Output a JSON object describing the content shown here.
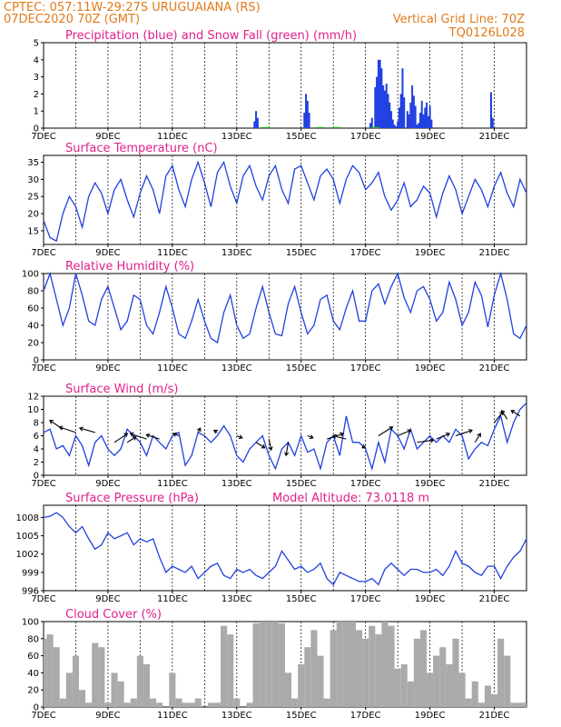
{
  "header": {
    "line1": "CPTEC:   057:11W-29:27S  URUGUAIANA (RS)",
    "line2": "07DEC2020 70Z (GMT)",
    "right1": "Vertical Grid Line: 70Z",
    "right2": "TQ0126L028"
  },
  "x_ticks": [
    "7DEC",
    "9DEC",
    "11DEC",
    "13DEC",
    "15DEC",
    "17DEC",
    "19DEC",
    "21DEC"
  ],
  "colors": {
    "series": "#2040e0",
    "snow": "#20b020",
    "cloud": "#aaaaaa",
    "header": "#e07a1a",
    "title": "#e0208a"
  },
  "chart_data": [
    {
      "id": "precip",
      "type": "bar",
      "title": "Precipitation (blue) and Snow Fall (green) (mm/h)",
      "ylim": [
        0,
        5
      ],
      "yticks": [
        0,
        1,
        2,
        3,
        4,
        5
      ],
      "x_unit": "days since 7DEC 00Z",
      "series": [
        {
          "name": "Precipitation",
          "x": [
            6.55,
            6.6,
            6.65,
            8.1,
            8.15,
            8.2,
            8.25,
            10.15,
            10.2,
            10.3,
            10.35,
            10.4,
            10.45,
            10.5,
            10.55,
            10.6,
            10.65,
            10.7,
            10.75,
            10.8,
            10.85,
            10.9,
            10.95,
            11.0,
            11.05,
            11.1,
            11.15,
            11.2,
            11.3,
            11.35,
            11.4,
            11.45,
            11.5,
            11.55,
            11.6,
            11.65,
            11.7,
            11.75,
            11.8,
            11.85,
            11.9,
            11.95,
            12.0,
            12.05,
            13.9,
            13.95
          ],
          "values": [
            0.4,
            1.0,
            0.6,
            0.9,
            2.0,
            1.6,
            0.9,
            0.3,
            0.6,
            2.4,
            3.0,
            4.0,
            4.0,
            3.5,
            2.5,
            2.2,
            2.6,
            2.0,
            1.5,
            1.0,
            0.5,
            0.2,
            0.1,
            0.4,
            1.2,
            2.0,
            3.5,
            1.8,
            1.0,
            0.8,
            1.5,
            2.5,
            1.9,
            1.3,
            0.2,
            0.3,
            0.9,
            1.6,
            0.8,
            1.2,
            1.5,
            0.7,
            1.3,
            0.5,
            2.1,
            0.6
          ]
        },
        {
          "name": "Snow Fall",
          "x": [
            6.8,
            6.9,
            8.5,
            8.6,
            9.0,
            9.1,
            10.2,
            10.3
          ],
          "values": [
            0.05,
            0.05,
            0.05,
            0.05,
            0.05,
            0.05,
            0.05,
            0.05
          ]
        }
      ]
    },
    {
      "id": "temp",
      "type": "line",
      "title": "Surface Temperature (nC)",
      "ylim": [
        11,
        37
      ],
      "yticks": [
        15,
        20,
        25,
        30,
        35
      ],
      "x": [
        0,
        0.2,
        0.4,
        0.6,
        0.8,
        1.0,
        1.2,
        1.4,
        1.6,
        1.8,
        2.0,
        2.2,
        2.4,
        2.6,
        2.8,
        3.0,
        3.2,
        3.4,
        3.6,
        3.8,
        4.0,
        4.2,
        4.4,
        4.6,
        4.8,
        5.0,
        5.2,
        5.4,
        5.6,
        5.8,
        6.0,
        6.2,
        6.4,
        6.6,
        6.8,
        7.0,
        7.2,
        7.4,
        7.6,
        7.8,
        8.0,
        8.2,
        8.4,
        8.6,
        8.8,
        9.0,
        9.2,
        9.4,
        9.6,
        9.8,
        10.0,
        10.2,
        10.4,
        10.6,
        10.8,
        11.0,
        11.2,
        11.4,
        11.6,
        11.8,
        12.0,
        12.2,
        12.4,
        12.6,
        12.8,
        13.0,
        13.2,
        13.4,
        13.6,
        13.8,
        14.0,
        14.2,
        14.4,
        14.6,
        14.8,
        15.0
      ],
      "values": [
        18,
        13,
        12,
        20,
        25,
        22,
        16,
        25,
        29,
        26,
        20,
        27,
        30,
        24,
        19,
        26,
        31,
        27,
        20,
        31,
        34,
        27,
        22,
        30,
        35,
        29,
        22,
        32,
        35,
        28,
        23,
        31,
        34,
        28,
        24,
        31,
        34,
        27,
        23,
        33,
        34,
        29,
        24,
        31,
        33,
        30,
        23,
        30,
        34,
        32,
        27,
        29,
        32,
        25,
        21,
        24,
        29,
        22,
        24,
        28,
        26,
        19,
        26,
        31,
        27,
        20,
        25,
        30,
        27,
        22,
        28,
        32,
        26,
        22,
        30,
        26
      ]
    },
    {
      "id": "rh",
      "type": "line",
      "title": "Relative Humidity (%)",
      "ylim": [
        0,
        100
      ],
      "yticks": [
        0,
        20,
        40,
        60,
        80,
        100
      ],
      "x": [
        0,
        0.2,
        0.4,
        0.6,
        0.8,
        1.0,
        1.2,
        1.4,
        1.6,
        1.8,
        2.0,
        2.2,
        2.4,
        2.6,
        2.8,
        3.0,
        3.2,
        3.4,
        3.6,
        3.8,
        4.0,
        4.2,
        4.4,
        4.6,
        4.8,
        5.0,
        5.2,
        5.4,
        5.6,
        5.8,
        6.0,
        6.2,
        6.4,
        6.6,
        6.8,
        7.0,
        7.2,
        7.4,
        7.6,
        7.8,
        8.0,
        8.2,
        8.4,
        8.6,
        8.8,
        9.0,
        9.2,
        9.4,
        9.6,
        9.8,
        10.0,
        10.2,
        10.4,
        10.6,
        10.8,
        11.0,
        11.2,
        11.4,
        11.6,
        11.8,
        12.0,
        12.2,
        12.4,
        12.6,
        12.8,
        13.0,
        13.2,
        13.4,
        13.6,
        13.8,
        14.0,
        14.2,
        14.4,
        14.6,
        14.8,
        15.0
      ],
      "values": [
        80,
        100,
        70,
        40,
        60,
        100,
        75,
        45,
        40,
        70,
        85,
        60,
        35,
        45,
        75,
        70,
        40,
        30,
        55,
        85,
        60,
        30,
        25,
        45,
        70,
        45,
        25,
        20,
        55,
        75,
        40,
        25,
        30,
        60,
        85,
        55,
        30,
        28,
        65,
        85,
        55,
        30,
        40,
        70,
        75,
        45,
        35,
        60,
        80,
        45,
        45,
        80,
        88,
        65,
        85,
        100,
        72,
        55,
        80,
        85,
        70,
        45,
        55,
        90,
        70,
        40,
        55,
        90,
        75,
        38,
        75,
        100,
        70,
        30,
        25,
        40
      ]
    },
    {
      "id": "wind",
      "type": "line",
      "title": "Surface Wind (m/s)",
      "ylim": [
        0,
        12
      ],
      "yticks": [
        0,
        2,
        4,
        6,
        8,
        10,
        12
      ],
      "x": [
        0,
        0.2,
        0.4,
        0.6,
        0.8,
        1.0,
        1.2,
        1.4,
        1.6,
        1.8,
        2.0,
        2.2,
        2.4,
        2.6,
        2.8,
        3.0,
        3.2,
        3.4,
        3.6,
        3.8,
        4.0,
        4.2,
        4.4,
        4.6,
        4.8,
        5.0,
        5.2,
        5.4,
        5.6,
        5.8,
        6.0,
        6.2,
        6.4,
        6.6,
        6.8,
        7.0,
        7.2,
        7.4,
        7.6,
        7.8,
        8.0,
        8.2,
        8.4,
        8.6,
        8.8,
        9.0,
        9.2,
        9.4,
        9.6,
        9.8,
        10.0,
        10.2,
        10.4,
        10.6,
        10.8,
        11.0,
        11.2,
        11.4,
        11.6,
        11.8,
        12.0,
        12.2,
        12.4,
        12.6,
        12.8,
        13.0,
        13.2,
        13.4,
        13.6,
        13.8,
        14.0,
        14.2,
        14.4,
        14.6,
        14.8,
        15.0
      ],
      "values": [
        6.5,
        7,
        4,
        4.5,
        3,
        6,
        4.5,
        1.5,
        5,
        6,
        4,
        3,
        4,
        7,
        6,
        5,
        3,
        6,
        5,
        4,
        6,
        6.5,
        1.5,
        3,
        6.5,
        6,
        5,
        6,
        7.5,
        6,
        3,
        2,
        4,
        5,
        6,
        3,
        1,
        4,
        5,
        3,
        6,
        3.5,
        4,
        1,
        5,
        6,
        3,
        9,
        5,
        5,
        4,
        1,
        5,
        2,
        7,
        6,
        4,
        7,
        4,
        5,
        6,
        5,
        6,
        5,
        7,
        6,
        2.5,
        4,
        5,
        4.5,
        7,
        9,
        5,
        8,
        10,
        11
      ]
    },
    {
      "id": "pressure",
      "type": "line",
      "title": "Surface Pressure (hPa)",
      "annotation": "Model Altitude: 73.0118 m",
      "ylim": [
        996,
        1010
      ],
      "yticks": [
        996,
        999,
        1002,
        1005,
        1008
      ],
      "x": [
        0,
        0.2,
        0.4,
        0.6,
        0.8,
        1.0,
        1.2,
        1.4,
        1.6,
        1.8,
        2.0,
        2.2,
        2.4,
        2.6,
        2.8,
        3.0,
        3.2,
        3.4,
        3.6,
        3.8,
        4.0,
        4.2,
        4.4,
        4.6,
        4.8,
        5.0,
        5.2,
        5.4,
        5.6,
        5.8,
        6.0,
        6.2,
        6.4,
        6.6,
        6.8,
        7.0,
        7.2,
        7.4,
        7.6,
        7.8,
        8.0,
        8.2,
        8.4,
        8.6,
        8.8,
        9.0,
        9.2,
        9.4,
        9.6,
        9.8,
        10.0,
        10.2,
        10.4,
        10.6,
        10.8,
        11.0,
        11.2,
        11.4,
        11.6,
        11.8,
        12.0,
        12.2,
        12.4,
        12.6,
        12.8,
        13.0,
        13.2,
        13.4,
        13.6,
        13.8,
        14.0,
        14.2,
        14.4,
        14.6,
        14.8,
        15.0
      ],
      "values": [
        1008,
        1008.2,
        1008.8,
        1008,
        1006.5,
        1005.5,
        1006.5,
        1004.5,
        1002.8,
        1003.5,
        1005.5,
        1004.5,
        1005,
        1005.5,
        1003.5,
        1004.5,
        1004,
        1004.5,
        1001.5,
        999,
        1000,
        999.5,
        999,
        1000,
        998,
        999,
        1000,
        1000.5,
        998.5,
        998,
        999.5,
        999,
        999.5,
        998.5,
        998,
        999,
        1000,
        1002.5,
        1001,
        999.5,
        1000,
        999,
        999.5,
        1000.5,
        998,
        997,
        999,
        998.5,
        998,
        997.5,
        997.5,
        998,
        997,
        999.5,
        1000.5,
        999.5,
        998.5,
        999.5,
        999.5,
        999,
        999,
        999.5,
        998.5,
        1000,
        1002.5,
        1000.5,
        1000,
        999,
        998.5,
        1000,
        1000,
        998,
        1000,
        1001.5,
        1002.5,
        1004.5
      ]
    },
    {
      "id": "cloud",
      "type": "area",
      "title": "Cloud Cover (%)",
      "ylim": [
        0,
        100
      ],
      "yticks": [
        0,
        20,
        40,
        60,
        80,
        100
      ],
      "x": [
        0,
        0.2,
        0.4,
        0.6,
        0.8,
        1.0,
        1.2,
        1.4,
        1.6,
        1.8,
        2.0,
        2.2,
        2.4,
        2.6,
        2.8,
        3.0,
        3.2,
        3.4,
        3.6,
        3.8,
        4.0,
        4.2,
        4.4,
        4.6,
        4.8,
        5.0,
        5.2,
        5.4,
        5.6,
        5.8,
        6.0,
        6.2,
        6.4,
        6.6,
        6.8,
        7.0,
        7.2,
        7.4,
        7.6,
        7.8,
        8.0,
        8.2,
        8.4,
        8.6,
        8.8,
        9.0,
        9.2,
        9.4,
        9.6,
        9.8,
        10.0,
        10.2,
        10.4,
        10.6,
        10.8,
        11.0,
        11.2,
        11.4,
        11.6,
        11.8,
        12.0,
        12.2,
        12.4,
        12.6,
        12.8,
        13.0,
        13.2,
        13.4,
        13.6,
        13.8,
        14.0,
        14.2,
        14.4,
        14.6,
        14.8,
        15.0
      ],
      "values": [
        80,
        85,
        70,
        10,
        40,
        60,
        20,
        5,
        75,
        70,
        5,
        40,
        30,
        5,
        10,
        60,
        50,
        10,
        5,
        0,
        40,
        10,
        5,
        5,
        10,
        0,
        5,
        5,
        95,
        85,
        10,
        0,
        5,
        98,
        100,
        100,
        100,
        98,
        40,
        10,
        50,
        70,
        90,
        60,
        10,
        90,
        100,
        100,
        100,
        90,
        80,
        95,
        85,
        100,
        95,
        45,
        50,
        30,
        80,
        90,
        40,
        60,
        70,
        50,
        80,
        40,
        10,
        30,
        5,
        25,
        15,
        80,
        60,
        5,
        5,
        5
      ]
    },
    {
      "id": "wind_vectors",
      "type": "scatter",
      "title": "",
      "x": [
        0.6,
        1.0,
        1.6,
        2.2,
        2.6,
        3.2,
        3.6,
        4.2,
        4.8,
        5.4,
        6.0,
        6.6,
        7.0,
        7.6,
        8.2,
        8.8,
        9.4,
        10.0,
        10.4,
        11.0,
        11.6,
        12.2,
        12.8,
        13.4,
        14.0,
        14.4,
        14.8
      ],
      "values": [
        7,
        6.5,
        6.5,
        5,
        5,
        5.5,
        5.5,
        6,
        6.5,
        6.5,
        6,
        5,
        5.5,
        5,
        6,
        5.5,
        5.5,
        4.5,
        6,
        6,
        5,
        5.5,
        6,
        5,
        8,
        8.5,
        9
      ],
      "u": [
        -1.2,
        -1.5,
        -1.4,
        1.2,
        0.8,
        -1.5,
        -1.2,
        -0.5,
        0.2,
        -0.3,
        0.5,
        0.8,
        0.2,
        -0.2,
        0.5,
        1.5,
        -1.2,
        -0.3,
        1.3,
        1.2,
        1.5,
        1.2,
        1.5,
        0.5,
        0.8,
        -0.5,
        -0.8
      ],
      "v": [
        0.8,
        0.5,
        0.4,
        0.8,
        0.5,
        0.5,
        0.4,
        0.2,
        0.4,
        0.2,
        -0.2,
        -0.5,
        -1.0,
        -1.2,
        -0.2,
        0.5,
        0.3,
        -0.2,
        0.8,
        0.5,
        0.2,
        0.5,
        0.5,
        0.8,
        1.0,
        0.8,
        0.5
      ]
    }
  ]
}
